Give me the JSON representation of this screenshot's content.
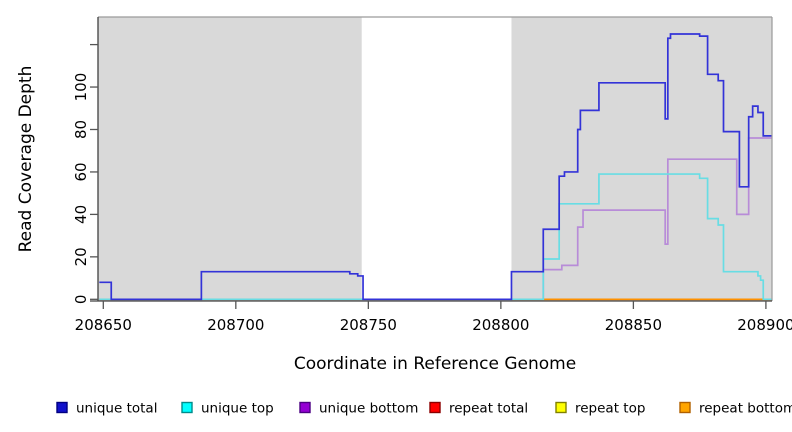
{
  "chart_data": {
    "type": "line",
    "subtype": "step-coverage",
    "title": "",
    "xlabel": "Coordinate in Reference Genome",
    "ylabel": "Read Coverage Depth",
    "xlim": [
      208648,
      208902.3
    ],
    "ylim": [
      -0.8,
      133
    ],
    "x_ticks": [
      208650,
      208700,
      208750,
      208800,
      208850,
      208900
    ],
    "x_tick_labels": [
      "208650",
      "208700",
      "208750",
      "208800",
      "208850",
      "208900"
    ],
    "y_ticks": [
      0,
      20,
      40,
      60,
      80,
      100,
      120
    ],
    "y_tick_labels": [
      "0",
      "20",
      "40",
      "60",
      "80",
      "100",
      ""
    ],
    "grid": false,
    "legend_position": "bottom",
    "background_shaded_regions": [
      [
        208648,
        208747.5
      ],
      [
        208804,
        208902.3
      ]
    ],
    "shade_color": "#d9d9d9",
    "unshaded_gap": [
      208747.5,
      208804
    ],
    "series": [
      {
        "name": "unique total",
        "line_color": "#3333d8",
        "legend_fill": "#1111cc",
        "legend_border": "#000080",
        "z": 6,
        "step_points": [
          [
            208648.5,
            8
          ],
          [
            208653,
            0
          ],
          [
            208687,
            13
          ],
          [
            208743,
            12
          ],
          [
            208746,
            11
          ],
          [
            208748,
            0
          ],
          [
            208804,
            13
          ],
          [
            208816,
            33
          ],
          [
            208822,
            58
          ],
          [
            208824,
            60
          ],
          [
            208829,
            80
          ],
          [
            208830,
            89
          ],
          [
            208837,
            102
          ],
          [
            208862,
            85
          ],
          [
            208863,
            123
          ],
          [
            208864,
            125
          ],
          [
            208875,
            124
          ],
          [
            208878,
            106
          ],
          [
            208882,
            103
          ],
          [
            208884,
            79
          ],
          [
            208890,
            53
          ],
          [
            208893.5,
            86
          ],
          [
            208895,
            91
          ],
          [
            208897,
            88
          ],
          [
            208899,
            77
          ],
          [
            208902.3,
            77
          ]
        ]
      },
      {
        "name": "unique top",
        "line_color": "#68dde4",
        "legend_fill": "#00ffff",
        "legend_border": "#008b8b",
        "z": 5,
        "step_points": [
          [
            208648.5,
            0
          ],
          [
            208816,
            19
          ],
          [
            208822,
            45
          ],
          [
            208837,
            59
          ],
          [
            208875,
            57
          ],
          [
            208878,
            38
          ],
          [
            208882,
            35
          ],
          [
            208884,
            13
          ],
          [
            208897,
            11
          ],
          [
            208898,
            9
          ],
          [
            208899,
            0
          ],
          [
            208902.3,
            0
          ]
        ]
      },
      {
        "name": "unique bottom",
        "line_color": "#b88cd8",
        "legend_fill": "#9400d3",
        "legend_border": "#4b0082",
        "z": 4,
        "step_points": [
          [
            208648.5,
            0
          ],
          [
            208816,
            14
          ],
          [
            208823,
            16
          ],
          [
            208829,
            34
          ],
          [
            208831,
            42
          ],
          [
            208862,
            26
          ],
          [
            208863,
            66
          ],
          [
            208889,
            40
          ],
          [
            208893.5,
            76
          ],
          [
            208902.3,
            76
          ]
        ]
      },
      {
        "name": "repeat total",
        "line_color": "#e05555",
        "legend_fill": "#ff0000",
        "legend_border": "#8b0000",
        "z": 2,
        "step_points": [
          [
            208648.5,
            0
          ],
          [
            208902.3,
            0
          ]
        ]
      },
      {
        "name": "repeat top",
        "line_color": "#f5e642",
        "legend_fill": "#ffff00",
        "legend_border": "#808000",
        "z": 1,
        "step_points": [
          [
            208648.5,
            0
          ],
          [
            208902.3,
            0
          ]
        ]
      },
      {
        "name": "repeat bottom",
        "line_color": "#ff9100",
        "legend_fill": "#ffa500",
        "legend_border": "#b06000",
        "z": 3,
        "step_points": [
          [
            208804,
            0
          ],
          [
            208902.3,
            0
          ]
        ]
      }
    ]
  }
}
